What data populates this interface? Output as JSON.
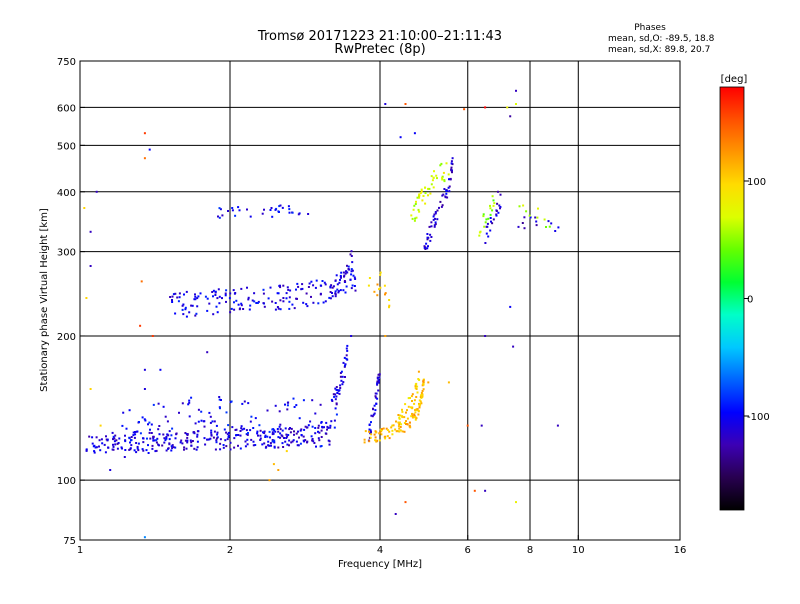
{
  "chart_data": {
    "type": "scatter",
    "title": "Tromsø 20171223 21:10:00–21:11:43",
    "subtitle": "RwPretec (8p)",
    "xlabel": "Frequency [MHz]",
    "ylabel": "Stationary phase Virtual Height [km]",
    "x_scale": "log2",
    "y_scale": "log",
    "xlim": [
      1,
      16
    ],
    "ylim": [
      75,
      750
    ],
    "x_ticks": [
      1,
      2,
      4,
      6,
      8,
      10,
      16
    ],
    "y_ticks": [
      75,
      100,
      200,
      300,
      400,
      500,
      600,
      750
    ],
    "grid": true,
    "colorbar": {
      "label": "[deg]",
      "min": -180,
      "max": 180,
      "ticks": [
        100,
        0,
        -100
      ],
      "colors": [
        "#000000",
        "#280050",
        "#3c00b4",
        "#0000ff",
        "#0064ff",
        "#00c8ff",
        "#00ffc8",
        "#00ff32",
        "#64ff00",
        "#dcff00",
        "#ffdc00",
        "#ff9600",
        "#ff5000",
        "#ff0000"
      ]
    },
    "stats": {
      "heading": "Phases",
      "o_mode": "mean, sd,O: -89.5, 18.8",
      "x_mode": "mean, sd,X:  89.8, 20.7"
    },
    "series": [
      {
        "phase": -110,
        "spread": 0.05,
        "density": 7,
        "points": [
          [
            1.03,
            118
          ],
          [
            1.2,
            120
          ],
          [
            1.5,
            121
          ],
          [
            2.0,
            122
          ],
          [
            2.5,
            123
          ],
          [
            3.0,
            125
          ],
          [
            3.2,
            127
          ]
        ]
      },
      {
        "phase": -100,
        "spread": 0.12,
        "density": 3,
        "points": [
          [
            1.2,
            125
          ],
          [
            1.5,
            132
          ],
          [
            1.8,
            135
          ],
          [
            2.2,
            132
          ],
          [
            2.6,
            136
          ],
          [
            3.0,
            132
          ],
          [
            3.3,
            136
          ]
        ]
      },
      {
        "phase": -105,
        "spread": 0.06,
        "density": 5,
        "points": [
          [
            1.5,
            232
          ],
          [
            1.8,
            235
          ],
          [
            2.0,
            238
          ],
          [
            2.3,
            240
          ],
          [
            2.6,
            242
          ],
          [
            2.9,
            245
          ],
          [
            3.2,
            252
          ],
          [
            3.4,
            258
          ],
          [
            3.6,
            265
          ]
        ]
      },
      {
        "phase": -110,
        "spread": 0.04,
        "density": 3,
        "points": [
          [
            3.25,
            245
          ],
          [
            3.35,
            260
          ],
          [
            3.45,
            278
          ],
          [
            3.52,
            292
          ]
        ]
      },
      {
        "phase": -100,
        "spread": 0.03,
        "density": 2,
        "points": [
          [
            1.88,
            362
          ],
          [
            2.2,
            363
          ],
          [
            2.6,
            367
          ],
          [
            2.9,
            368
          ]
        ]
      },
      {
        "phase": -110,
        "spread": 0.05,
        "density": 3,
        "points": [
          [
            3.2,
            140
          ],
          [
            3.3,
            155
          ],
          [
            3.4,
            172
          ],
          [
            3.45,
            185
          ]
        ]
      },
      {
        "phase": -110,
        "spread": 0.04,
        "density": 3,
        "points": [
          [
            3.8,
            125
          ],
          [
            3.9,
            140
          ],
          [
            3.95,
            155
          ],
          [
            4.0,
            170
          ]
        ]
      },
      {
        "phase": 110,
        "spread": 0.03,
        "density": 6,
        "points": [
          [
            3.7,
            123
          ],
          [
            4.0,
            124
          ],
          [
            4.3,
            127
          ],
          [
            4.6,
            132
          ],
          [
            4.75,
            138
          ],
          [
            4.85,
            148
          ],
          [
            4.9,
            160
          ]
        ]
      },
      {
        "phase": 100,
        "spread": 0.04,
        "density": 3,
        "points": [
          [
            4.3,
            130
          ],
          [
            4.5,
            140
          ],
          [
            4.7,
            150
          ],
          [
            4.8,
            165
          ]
        ]
      },
      {
        "phase": 70,
        "spread": 0.05,
        "density": 3,
        "points": [
          [
            4.6,
            340
          ],
          [
            4.8,
            380
          ],
          [
            5.0,
            405
          ],
          [
            5.2,
            430
          ],
          [
            5.5,
            450
          ]
        ]
      },
      {
        "phase": -115,
        "spread": 0.04,
        "density": 3,
        "points": [
          [
            4.9,
            300
          ],
          [
            5.1,
            340
          ],
          [
            5.25,
            370
          ],
          [
            5.5,
            410
          ],
          [
            5.6,
            460
          ]
        ]
      },
      {
        "phase": 110,
        "spread": 0.06,
        "density": 2,
        "points": [
          [
            3.8,
            250
          ],
          [
            4.0,
            260
          ],
          [
            4.2,
            240
          ]
        ]
      },
      {
        "phase": 50,
        "spread": 0.04,
        "density": 2,
        "points": [
          [
            6.3,
            330
          ],
          [
            6.6,
            360
          ],
          [
            6.8,
            390
          ]
        ]
      },
      {
        "phase": -115,
        "spread": 0.04,
        "density": 2,
        "points": [
          [
            6.5,
            320
          ],
          [
            6.8,
            360
          ],
          [
            7.1,
            400
          ]
        ]
      },
      {
        "phase": -115,
        "spread": 0.03,
        "density": 1,
        "points": [
          [
            7.5,
            340
          ],
          [
            8.0,
            350
          ],
          [
            8.6,
            340
          ],
          [
            9.2,
            330
          ]
        ]
      },
      {
        "phase": 60,
        "spread": 0.04,
        "density": 1,
        "points": [
          [
            7.6,
            370
          ],
          [
            8.2,
            360
          ],
          [
            8.8,
            340
          ]
        ]
      }
    ],
    "scattered": [
      [
        1.05,
        330,
        -120
      ],
      [
        1.02,
        370,
        100
      ],
      [
        1.08,
        400,
        -120
      ],
      [
        1.03,
        240,
        100
      ],
      [
        1.05,
        280,
        -120
      ],
      [
        1.35,
        530,
        160
      ],
      [
        1.35,
        470,
        140
      ],
      [
        1.38,
        490,
        -100
      ],
      [
        1.33,
        260,
        140
      ],
      [
        1.32,
        210,
        160
      ],
      [
        1.35,
        170,
        -110
      ],
      [
        1.4,
        200,
        160
      ],
      [
        1.35,
        155,
        -110
      ],
      [
        1.45,
        170,
        -100
      ],
      [
        1.35,
        76,
        -60
      ],
      [
        1.05,
        155,
        100
      ],
      [
        1.1,
        130,
        100
      ],
      [
        1.15,
        105,
        -110
      ],
      [
        1.8,
        185,
        -120
      ],
      [
        2.4,
        100,
        120
      ],
      [
        2.5,
        105,
        120
      ],
      [
        2.45,
        108,
        110
      ],
      [
        2.6,
        115,
        100
      ],
      [
        4.1,
        610,
        -110
      ],
      [
        4.5,
        610,
        150
      ],
      [
        4.4,
        520,
        -100
      ],
      [
        4.7,
        530,
        -100
      ],
      [
        5.9,
        595,
        150
      ],
      [
        6.5,
        600,
        180
      ],
      [
        7.2,
        600,
        80
      ],
      [
        7.3,
        575,
        -130
      ],
      [
        7.5,
        610,
        70
      ],
      [
        7.5,
        650,
        -120
      ],
      [
        4.5,
        90,
        150
      ],
      [
        4.3,
        85,
        -120
      ],
      [
        6.2,
        95,
        150
      ],
      [
        6.5,
        95,
        -120
      ],
      [
        7.5,
        90,
        80
      ],
      [
        7.3,
        230,
        -100
      ],
      [
        7.4,
        190,
        -120
      ],
      [
        6.0,
        130,
        150
      ],
      [
        6.4,
        130,
        -120
      ],
      [
        9.1,
        130,
        -120
      ],
      [
        3.5,
        200,
        -110
      ],
      [
        3.4,
        180,
        -100
      ],
      [
        5.5,
        160,
        110
      ],
      [
        6.5,
        200,
        -120
      ],
      [
        6.9,
        400,
        -130
      ],
      [
        5.0,
        160,
        120
      ],
      [
        4.1,
        200,
        120
      ]
    ]
  }
}
